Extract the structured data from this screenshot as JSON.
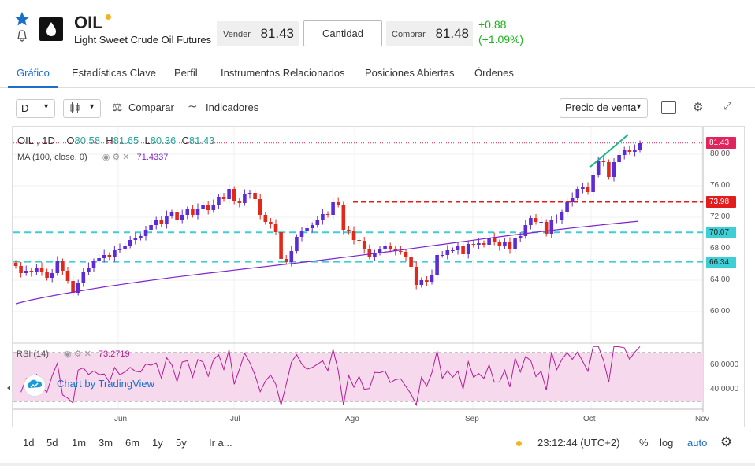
{
  "header": {
    "symbol": "OIL",
    "description": "Light Sweet Crude Oil Futures",
    "sell_label": "Vender",
    "sell_price": "81.43",
    "qty_label": "Cantidad",
    "buy_label": "Comprar",
    "buy_price": "81.48",
    "change_abs": "+0.88",
    "change_pct": "(+1.09%)",
    "icons": [
      "star-icon",
      "bell-icon",
      "oil-drop-logo"
    ]
  },
  "tabs": [
    {
      "label": "Gráfico",
      "active": true
    },
    {
      "label": "Estadísticas Clave"
    },
    {
      "label": "Perfil"
    },
    {
      "label": "Instrumentos Relacionados"
    },
    {
      "label": "Posiciones Abiertas"
    },
    {
      "label": "Órdenes"
    }
  ],
  "toolbar": {
    "interval": "D",
    "compare": "Comparar",
    "indicators": "Indicadores",
    "price_type": "Precio de venta"
  },
  "legend": {
    "symbol": "OIL , 1D",
    "o_label": "O",
    "o": "80.58",
    "h_label": "H",
    "h": "81.65",
    "l_label": "L",
    "l": "80.36",
    "c_label": "C",
    "c": "81.43",
    "ma_label": "MA (100, close, 0)",
    "ma_value": "71.4337",
    "rsi_label": "RSI (14)",
    "rsi_value": "73.2719"
  },
  "tags": {
    "last": "81.43",
    "resistance": "73.98",
    "level_upper": "70.07",
    "level_lower": "66.34"
  },
  "branding": "Chart by TradingView",
  "bottom": {
    "ranges": [
      "1d",
      "5d",
      "1m",
      "3m",
      "6m",
      "1y",
      "5y",
      "Ir a..."
    ],
    "time": "23:12:44 (UTC+2)",
    "pct": "%",
    "log": "log",
    "auto": "auto"
  },
  "chart_data": {
    "type": "line",
    "price_axis_ticks": [
      "80.00",
      "76.00",
      "72.00",
      "68.00",
      "64.00",
      "60.00"
    ],
    "rsi_axis_ticks": [
      "60.0000",
      "40.0000"
    ],
    "x_ticks": [
      "Jun",
      "Jul",
      "Ago",
      "Sep",
      "Oct",
      "Nov"
    ],
    "ohlc_daily_approx": {
      "open": [
        66.2,
        65.8,
        64.9,
        65.2,
        65.0,
        65.6,
        65.1,
        64.3,
        64.9,
        66.4,
        65.2,
        63.9,
        62.4,
        63.7,
        65.0,
        65.6,
        66.4,
        66.8,
        67.2,
        66.9,
        67.8,
        68.0,
        68.4,
        69.1,
        69.4,
        69.6,
        70.4,
        71.0,
        71.7,
        71.1,
        72.2,
        72.6,
        71.6,
        72.3,
        73.0,
        72.3,
        73.1,
        73.6,
        72.9,
        73.6,
        74.6,
        74.3,
        75.6,
        74.0,
        73.8,
        74.9,
        75.1,
        74.3,
        72.3,
        71.4,
        71.1,
        70.1,
        66.7,
        66.3,
        67.7,
        69.5,
        70.3,
        70.6,
        71.0,
        71.6,
        72.4,
        72.3,
        73.9,
        73.6,
        70.4,
        70.2,
        69.1,
        69.0,
        67.9,
        67.0,
        67.5,
        67.9,
        68.4,
        67.9,
        67.7,
        67.6,
        66.9,
        65.7,
        63.4,
        64.0,
        63.8,
        64.7,
        67.2,
        67.2,
        67.8,
        67.8,
        68.3,
        67.3,
        68.6,
        68.5,
        68.7,
        68.5,
        69.4,
        68.8,
        68.3,
        68.8,
        67.9,
        69.4,
        69.6,
        71.0,
        71.9,
        71.4,
        71.4,
        69.9,
        71.6,
        71.7,
        72.6,
        73.9,
        74.5,
        75.6,
        75.8,
        75.2,
        77.4,
        79.2,
        79.0,
        77.1,
        79.0,
        79.9,
        80.6,
        80.3,
        80.6
      ],
      "close": [
        65.8,
        64.9,
        65.2,
        65.0,
        65.6,
        65.1,
        64.3,
        64.9,
        66.4,
        65.2,
        63.9,
        62.4,
        63.7,
        65.0,
        65.6,
        66.4,
        66.8,
        67.2,
        66.9,
        67.8,
        68.0,
        68.4,
        69.1,
        69.4,
        69.6,
        70.4,
        71.0,
        71.7,
        71.1,
        72.2,
        72.6,
        71.6,
        72.3,
        73.0,
        72.3,
        73.1,
        73.6,
        72.9,
        73.6,
        74.6,
        74.3,
        75.6,
        74.0,
        73.8,
        74.9,
        75.1,
        74.3,
        72.3,
        71.4,
        71.1,
        70.1,
        66.7,
        66.3,
        67.7,
        69.5,
        70.3,
        70.6,
        71.0,
        71.6,
        72.4,
        72.3,
        73.9,
        73.6,
        70.4,
        70.2,
        69.1,
        69.0,
        67.9,
        67.0,
        67.5,
        67.9,
        68.4,
        67.9,
        67.7,
        67.6,
        66.9,
        65.7,
        63.4,
        64.0,
        63.8,
        64.7,
        67.2,
        67.2,
        67.8,
        67.8,
        68.3,
        67.3,
        68.6,
        68.5,
        68.7,
        68.5,
        69.4,
        68.8,
        68.3,
        68.8,
        67.9,
        69.4,
        69.6,
        71.0,
        71.9,
        71.4,
        71.4,
        69.9,
        71.6,
        71.7,
        72.6,
        73.9,
        74.5,
        75.6,
        75.8,
        75.2,
        77.4,
        79.2,
        79.0,
        77.1,
        79.0,
        79.9,
        80.6,
        80.3,
        80.6,
        81.4
      ]
    },
    "ma_line": {
      "name": "MA (100, close, 0)",
      "start": 61.0,
      "end": 71.43
    },
    "horizontal_levels": [
      73.98,
      70.07,
      66.34
    ],
    "y_range": [
      57.5,
      82.5
    ],
    "rsi_range": [
      25,
      80
    ]
  }
}
